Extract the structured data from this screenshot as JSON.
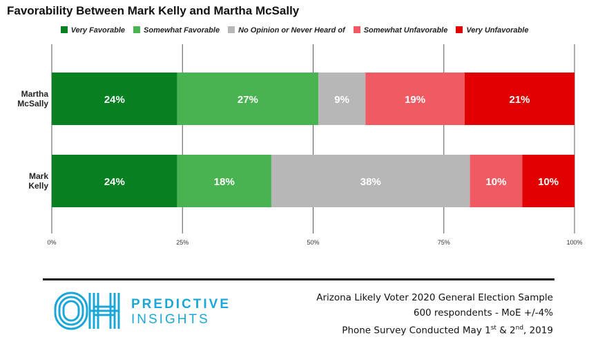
{
  "title": "Favorability Between Mark Kelly and Martha McSally",
  "chart_data": {
    "type": "bar",
    "orientation": "horizontal",
    "stacked": true,
    "title": "Favorability Between Mark Kelly and Martha McSally",
    "categories": [
      "Martha\nMcSally",
      "Mark\nKelly"
    ],
    "xlim": [
      0,
      100
    ],
    "x_ticks": [
      "0%",
      "25%",
      "50%",
      "75%",
      "100%"
    ],
    "x_tick_values": [
      0,
      25,
      50,
      75,
      100
    ],
    "grid": true,
    "legend_position": "top",
    "series": [
      {
        "name": "Very Favorable",
        "color": "#078021",
        "values": [
          24,
          24
        ],
        "labels": [
          "24%",
          "24%"
        ]
      },
      {
        "name": "Somewhat Favorable",
        "color": "#4ab351",
        "values": [
          27,
          18
        ],
        "labels": [
          "27%",
          "18%"
        ]
      },
      {
        "name": "No Opinion or Never Heard of",
        "color": "#b7b7b7",
        "values": [
          9,
          38
        ],
        "labels": [
          "9%",
          "38%"
        ]
      },
      {
        "name": "Somewhat Unfavorable",
        "color": "#f05a63",
        "values": [
          19,
          10
        ],
        "labels": [
          "19%",
          "10%"
        ]
      },
      {
        "name": "Very Unfavorable",
        "color": "#e10000",
        "values": [
          21,
          10
        ],
        "labels": [
          "21%",
          "10%"
        ]
      }
    ]
  },
  "logo": {
    "line1": "PREDICTIVE",
    "line2": "INSIGHTS",
    "color": "#1aa7d8"
  },
  "survey": {
    "line1": "Arizona Likely Voter 2020 General Election Sample",
    "line2": "600 respondents  - MoE +/-4%",
    "line3_a": "Phone Survey Conducted  May 1",
    "line3_sup1": "st",
    "line3_b": " & 2",
    "line3_sup2": "nd",
    "line3_c": ", 2019"
  }
}
